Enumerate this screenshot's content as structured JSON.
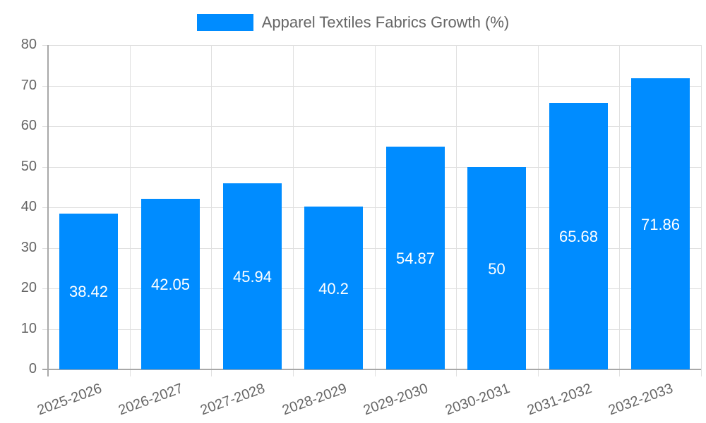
{
  "chart_data": {
    "type": "bar",
    "title": "",
    "legend": [
      {
        "label": "Apparel Textiles Fabrics Growth (%)",
        "color": "#008cff"
      }
    ],
    "legend_position": "top",
    "categories": [
      "2025-2026",
      "2026-2027",
      "2027-2028",
      "2028-2029",
      "2029-2030",
      "2030-2031",
      "2031-2032",
      "2032-2033"
    ],
    "series": [
      {
        "name": "Apparel Textiles Fabrics Growth (%)",
        "values": [
          38.42,
          42.05,
          45.94,
          40.2,
          54.87,
          50,
          65.68,
          71.86
        ],
        "data_labels": [
          "38.42",
          "42.05",
          "45.94",
          "40.2",
          "54.87",
          "50",
          "65.68",
          "71.86"
        ]
      }
    ],
    "xlabel": "",
    "ylabel": "",
    "ylim": [
      0,
      80
    ],
    "yticks": [
      "0",
      "10",
      "20",
      "30",
      "40",
      "50",
      "60",
      "70",
      "80"
    ],
    "grid": true
  },
  "legend": {
    "label": "Apparel Textiles Fabrics Growth (%)",
    "color": "#008cff"
  },
  "colors": {
    "bar": "#008cff",
    "grid": "#e0e0e0",
    "axis": "#a8a8a8",
    "text": "#666666"
  }
}
